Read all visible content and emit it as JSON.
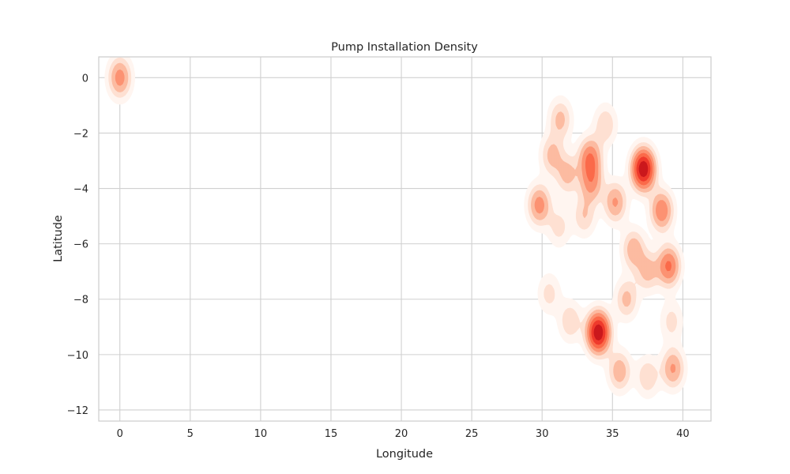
{
  "chart_data": {
    "type": "kde-density",
    "title": "Pump Installation Density",
    "xlabel": "Longitude",
    "ylabel": "Latitude",
    "xlim": [
      -1.5,
      42
    ],
    "ylim": [
      -12.4,
      0.75
    ],
    "xticks": [
      0,
      5,
      10,
      15,
      20,
      25,
      30,
      35,
      40
    ],
    "yticks": [
      0,
      -2,
      -4,
      -6,
      -8,
      -10,
      -12
    ],
    "grid": true,
    "colormap": [
      "#fff5f0",
      "#fee0d2",
      "#fcbba1",
      "#fc9272",
      "#fb6a4a",
      "#ef3b2c",
      "#cb181d"
    ],
    "density_peaks": [
      {
        "lon": 0.0,
        "lat": 0.0,
        "weight": 0.45
      },
      {
        "lon": 31.3,
        "lat": -1.5,
        "weight": 0.3
      },
      {
        "lon": 34.5,
        "lat": -1.7,
        "weight": 0.25
      },
      {
        "lon": 30.7,
        "lat": -2.8,
        "weight": 0.3
      },
      {
        "lon": 33.4,
        "lat": -2.9,
        "weight": 0.5
      },
      {
        "lon": 31.8,
        "lat": -3.5,
        "weight": 0.3
      },
      {
        "lon": 37.2,
        "lat": -3.3,
        "weight": 1.0
      },
      {
        "lon": 33.5,
        "lat": -3.8,
        "weight": 0.4
      },
      {
        "lon": 29.8,
        "lat": -4.6,
        "weight": 0.45
      },
      {
        "lon": 35.2,
        "lat": -4.5,
        "weight": 0.4
      },
      {
        "lon": 38.5,
        "lat": -4.8,
        "weight": 0.5
      },
      {
        "lon": 33.0,
        "lat": -5.0,
        "weight": 0.25
      },
      {
        "lon": 31.2,
        "lat": -5.4,
        "weight": 0.2
      },
      {
        "lon": 36.5,
        "lat": -6.2,
        "weight": 0.35
      },
      {
        "lon": 39.0,
        "lat": -6.8,
        "weight": 0.55
      },
      {
        "lon": 37.5,
        "lat": -7.0,
        "weight": 0.3
      },
      {
        "lon": 30.5,
        "lat": -7.8,
        "weight": 0.2
      },
      {
        "lon": 36.0,
        "lat": -8.0,
        "weight": 0.3
      },
      {
        "lon": 32.0,
        "lat": -8.8,
        "weight": 0.25
      },
      {
        "lon": 34.0,
        "lat": -9.2,
        "weight": 1.0
      },
      {
        "lon": 39.2,
        "lat": -8.8,
        "weight": 0.2
      },
      {
        "lon": 35.5,
        "lat": -10.6,
        "weight": 0.35
      },
      {
        "lon": 39.3,
        "lat": -10.5,
        "weight": 0.4
      },
      {
        "lon": 37.5,
        "lat": -10.8,
        "weight": 0.25
      }
    ]
  }
}
